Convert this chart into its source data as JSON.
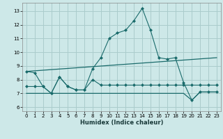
{
  "xlabel": "Humidex (Indice chaleur)",
  "background_color": "#cde8e8",
  "grid_color": "#aacccc",
  "line_color": "#1a6b6b",
  "xlim": [
    -0.5,
    23.5
  ],
  "ylim": [
    5.7,
    13.6
  ],
  "yticks": [
    6,
    7,
    8,
    9,
    10,
    11,
    12,
    13
  ],
  "xticks": [
    0,
    1,
    2,
    3,
    4,
    5,
    6,
    7,
    8,
    9,
    10,
    11,
    12,
    13,
    14,
    15,
    16,
    17,
    18,
    19,
    20,
    21,
    22,
    23
  ],
  "series1_x": [
    0,
    1,
    2,
    3,
    4,
    5,
    6,
    7,
    8,
    9,
    10,
    11,
    12,
    13,
    14,
    15,
    16,
    17,
    18,
    19,
    20,
    21,
    22,
    23
  ],
  "series1_y": [
    8.6,
    8.5,
    7.5,
    7.0,
    8.2,
    7.5,
    7.25,
    7.25,
    8.8,
    9.6,
    11.0,
    11.4,
    11.6,
    12.3,
    13.2,
    11.6,
    9.6,
    9.5,
    9.6,
    7.8,
    6.5,
    7.1,
    7.1,
    7.1
  ],
  "series2_x": [
    0,
    1,
    2,
    3,
    4,
    5,
    6,
    7,
    8,
    9,
    10,
    11,
    12,
    13,
    14,
    15,
    16,
    17,
    18,
    19,
    20,
    21,
    22,
    23
  ],
  "series2_y": [
    7.5,
    7.5,
    7.5,
    7.0,
    8.2,
    7.5,
    7.25,
    7.25,
    8.0,
    7.6,
    7.6,
    7.6,
    7.6,
    7.6,
    7.6,
    7.6,
    7.6,
    7.6,
    7.6,
    7.6,
    7.6,
    7.6,
    7.6,
    7.6
  ],
  "series3_x": [
    0,
    23
  ],
  "series3_y": [
    8.6,
    9.6
  ],
  "series4_x": [
    0,
    19,
    20,
    21,
    22,
    23
  ],
  "series4_y": [
    7.0,
    7.0,
    6.5,
    7.1,
    7.1,
    7.1
  ]
}
